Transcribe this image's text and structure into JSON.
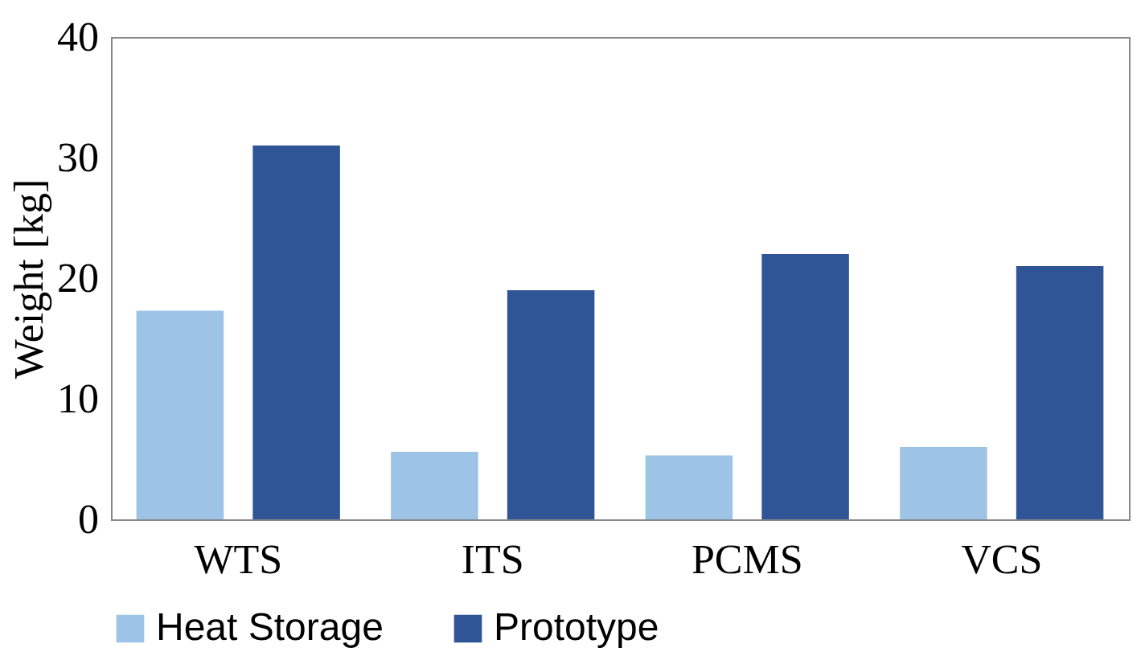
{
  "chart_data": {
    "type": "bar",
    "ylabel": "Weight [kg]",
    "categories": [
      "WTS",
      "ITS",
      "PCMS",
      "VCS"
    ],
    "series": [
      {
        "name": "Heat Storage",
        "color": "#9dc3e6",
        "values": [
          17.3,
          5.6,
          5.3,
          6.0
        ]
      },
      {
        "name": "Prototype",
        "color": "#2f5597",
        "values": [
          31,
          19,
          22,
          21
        ]
      }
    ],
    "ylim": [
      0,
      40
    ],
    "yticks": [
      0,
      10,
      20,
      30,
      40
    ],
    "grid": false,
    "legend": "bottom"
  }
}
